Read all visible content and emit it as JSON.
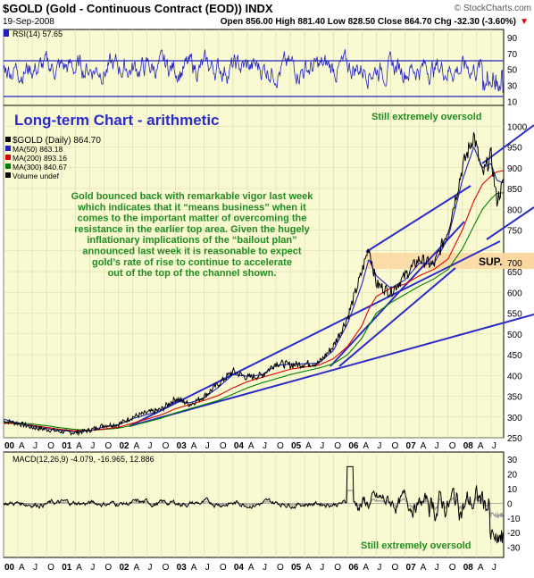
{
  "header": {
    "title": "$GOLD (Gold - Continuous Contract (EOD)) INDX",
    "watermark": "© StockCharts.com",
    "date": "19-Sep-2008",
    "ohlc": "Open 856.00  High 881.40  Low 828.50  Close 864.70  Chg -32.30 (-3.60%)",
    "down_arrow": "▼"
  },
  "rsi_panel": {
    "label": "RSI(14) 57.65",
    "note": "Still extremely oversold",
    "yticks": [
      "90",
      "70",
      "50",
      "30",
      "10"
    ]
  },
  "price_panel": {
    "big_title": "Long-term Chart - arithmetic",
    "legend": [
      {
        "text": "$GOLD (Daily) 864.70",
        "color": "#000000"
      },
      {
        "text": "MA(50) 863.18",
        "color": "#2020c0"
      },
      {
        "text": "MA(200) 893.16",
        "color": "#e00000"
      },
      {
        "text": "MA(300) 840.67",
        "color": "#008000"
      },
      {
        "text": "Volume undef",
        "color": "#000000"
      }
    ],
    "commentary": [
      "Gold bounced back with remarkable vigor last week",
      "which indicates that it “means business” when it",
      "comes to the important matter of overcoming the",
      "resistance in the earlier top area. Given the hugely",
      "inflationary implications of the “bailout plan”",
      "announced last week it is reasonable to expect",
      "gold’s rate of rise to continue to accelerate",
      "out of the top of the channel shown."
    ],
    "support_label": "SUP.",
    "current_price_tag": "700"
  },
  "macd_panel": {
    "label": "MACD(12,26,9) -4.079, -16.965, 12.886",
    "note": "Still extremely oversold",
    "yticks": [
      "30",
      "20",
      "10",
      "0",
      "-10",
      "-20",
      "-30"
    ]
  },
  "x_axis_labels": [
    "00",
    "A",
    "J",
    "O",
    "01",
    "A",
    "J",
    "O",
    "02",
    "A",
    "J",
    "O",
    "03",
    "A",
    "J",
    "O",
    "04",
    "A",
    "J",
    "O",
    "05",
    "A",
    "J",
    "O",
    "06",
    "A",
    "J",
    "O",
    "07",
    "A",
    "J",
    "O",
    "08",
    "A",
    "J"
  ],
  "chart_data": {
    "type": "line",
    "title": "$GOLD (Gold - Continuous Contract (EOD)) INDX",
    "xlabel": "",
    "ylabel": "",
    "ylim": [
      250,
      1050
    ],
    "yticks": [
      250,
      300,
      350,
      400,
      450,
      500,
      550,
      600,
      650,
      700,
      750,
      800,
      850,
      900,
      950,
      1000
    ],
    "x": [
      2000.0,
      2000.25,
      2000.5,
      2000.75,
      2001.0,
      2001.25,
      2001.5,
      2001.75,
      2002.0,
      2002.25,
      2002.5,
      2002.75,
      2003.0,
      2003.25,
      2003.5,
      2003.75,
      2004.0,
      2004.25,
      2004.5,
      2004.75,
      2005.0,
      2005.25,
      2005.5,
      2005.75,
      2006.0,
      2006.25,
      2006.37,
      2006.5,
      2006.75,
      2007.0,
      2007.25,
      2007.5,
      2007.75,
      2008.0,
      2008.2,
      2008.35,
      2008.5,
      2008.6,
      2008.72
    ],
    "series": [
      {
        "name": "$GOLD (Daily)",
        "color": "#000000",
        "values": [
          290,
          285,
          275,
          270,
          265,
          262,
          268,
          280,
          282,
          300,
          310,
          318,
          345,
          330,
          350,
          380,
          410,
          395,
          400,
          430,
          425,
          428,
          430,
          470,
          540,
          650,
          710,
          620,
          600,
          640,
          680,
          665,
          750,
          900,
          980,
          880,
          930,
          820,
          864
        ]
      },
      {
        "name": "MA(50)",
        "color": "#2020c0",
        "values": [
          295,
          285,
          278,
          272,
          268,
          264,
          267,
          276,
          281,
          296,
          306,
          315,
          338,
          334,
          346,
          372,
          402,
          398,
          401,
          424,
          427,
          428,
          430,
          460,
          525,
          620,
          680,
          640,
          610,
          630,
          670,
          668,
          730,
          870,
          950,
          900,
          910,
          870,
          863
        ]
      },
      {
        "name": "MA(200)",
        "color": "#e00000",
        "values": [
          285,
          284,
          280,
          275,
          270,
          267,
          267,
          271,
          275,
          285,
          295,
          305,
          320,
          330,
          340,
          352,
          370,
          385,
          395,
          405,
          415,
          420,
          425,
          440,
          470,
          520,
          560,
          590,
          610,
          620,
          640,
          655,
          680,
          750,
          820,
          860,
          880,
          890,
          893
        ]
      },
      {
        "name": "MA(300)",
        "color": "#008000",
        "values": [
          288,
          286,
          283,
          279,
          274,
          270,
          268,
          270,
          273,
          280,
          288,
          297,
          310,
          320,
          330,
          340,
          355,
          370,
          382,
          392,
          402,
          410,
          418,
          428,
          450,
          490,
          520,
          550,
          575,
          595,
          615,
          632,
          655,
          705,
          760,
          800,
          825,
          838,
          840
        ]
      }
    ]
  }
}
